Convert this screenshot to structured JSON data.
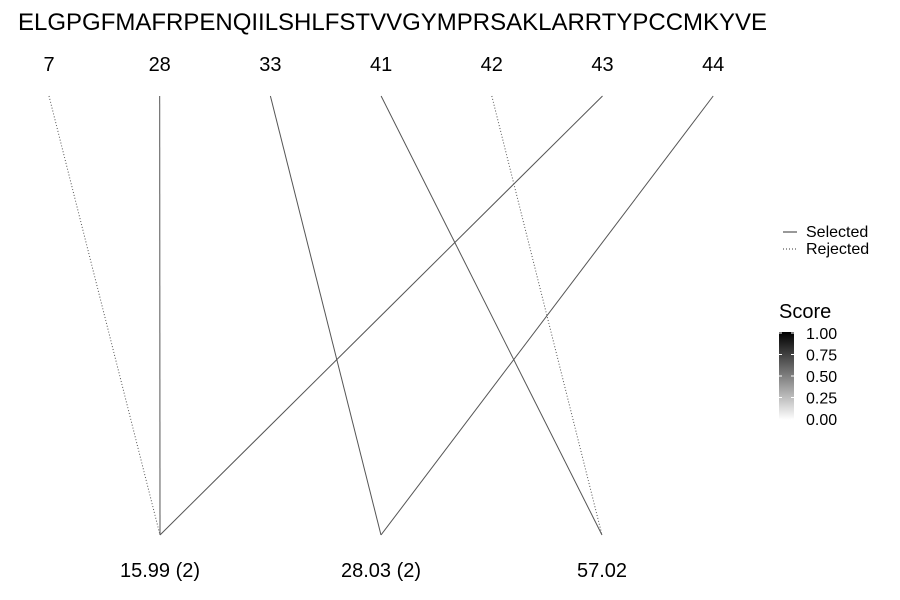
{
  "sequence": "ELGPGFMAFRPENQIILSHLFSTVVGYMPRSAKLARRTYPCCMKYVE",
  "positions": [
    "7",
    "28",
    "33",
    "41",
    "42",
    "43",
    "44"
  ],
  "masses": [
    "15.99 (2)",
    "28.03 (2)",
    "57.02"
  ],
  "links": [
    {
      "from": "7",
      "to": "15.99 (2)",
      "status": "rejected"
    },
    {
      "from": "28",
      "to": "15.99 (2)",
      "status": "selected"
    },
    {
      "from": "43",
      "to": "15.99 (2)",
      "status": "selected"
    },
    {
      "from": "33",
      "to": "28.03 (2)",
      "status": "selected"
    },
    {
      "from": "44",
      "to": "28.03 (2)",
      "status": "selected"
    },
    {
      "from": "41",
      "to": "57.02",
      "status": "selected"
    },
    {
      "from": "42",
      "to": "57.02",
      "status": "rejected"
    }
  ],
  "legend": {
    "selected_label": "Selected",
    "rejected_label": "Rejected"
  },
  "score_legend": {
    "title": "Score",
    "ticks": [
      "1.00",
      "0.75",
      "0.50",
      "0.25",
      "0.00"
    ],
    "colors": [
      "#000000",
      "#ffffff"
    ]
  },
  "line_color": "#555555"
}
